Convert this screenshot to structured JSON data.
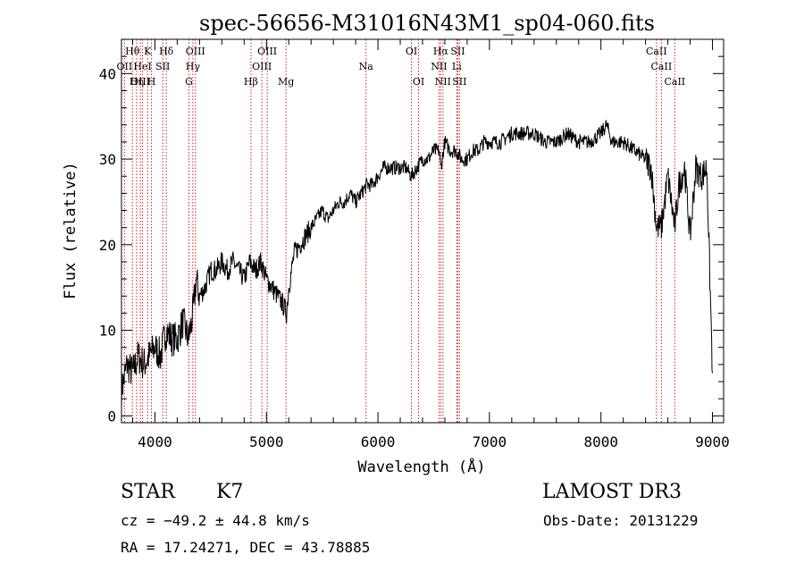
{
  "chart_data": {
    "type": "line",
    "title": "spec-56656-M31016N43M1_sp04-060.fits",
    "xlabel": "Wavelength (Å)",
    "ylabel": "Flux (relative)",
    "xlim": [
      3700,
      9100
    ],
    "ylim": [
      -0.8,
      44
    ],
    "xticks": [
      4000,
      5000,
      6000,
      7000,
      8000,
      9000
    ],
    "yticks": [
      0,
      10,
      20,
      30,
      40
    ],
    "series": [
      {
        "name": "spectrum",
        "x": [
          3700,
          3750,
          3800,
          3850,
          3900,
          3950,
          4000,
          4050,
          4100,
          4150,
          4200,
          4250,
          4300,
          4330,
          4350,
          4370,
          4400,
          4450,
          4500,
          4550,
          4600,
          4650,
          4700,
          4750,
          4800,
          4850,
          4900,
          4950,
          5000,
          5050,
          5100,
          5150,
          5180,
          5200,
          5250,
          5300,
          5350,
          5400,
          5450,
          5500,
          5550,
          5600,
          5650,
          5700,
          5750,
          5800,
          5850,
          5900,
          5950,
          6000,
          6050,
          6100,
          6150,
          6200,
          6250,
          6300,
          6350,
          6400,
          6450,
          6500,
          6550,
          6563,
          6600,
          6650,
          6700,
          6750,
          6800,
          6850,
          6900,
          6950,
          7000,
          7100,
          7200,
          7300,
          7400,
          7500,
          7600,
          7700,
          7800,
          7900,
          8000,
          8050,
          8100,
          8200,
          8300,
          8400,
          8450,
          8498,
          8542,
          8600,
          8662,
          8700,
          8750,
          8800,
          8850,
          8900,
          8950,
          9000
        ],
        "values": [
          3,
          6,
          5,
          7,
          6,
          7,
          8,
          7,
          10,
          9,
          9,
          11,
          9,
          11,
          13,
          16,
          14,
          15,
          17,
          17,
          18,
          17,
          18,
          17,
          16,
          18,
          17,
          18,
          16,
          15,
          14,
          13,
          12,
          15,
          19,
          20,
          21,
          22,
          23,
          24,
          23,
          24,
          25,
          25,
          26,
          25,
          26,
          27,
          27,
          28,
          29,
          29,
          29,
          29,
          29,
          28,
          29,
          30,
          30,
          31,
          31,
          29,
          32,
          31,
          31,
          30,
          30,
          31,
          31,
          32,
          32,
          32,
          33,
          33,
          33,
          32,
          32,
          33,
          32,
          32,
          33,
          34,
          32,
          32,
          31,
          30,
          29,
          22,
          22,
          28,
          22,
          27,
          29,
          21,
          29,
          28,
          29,
          5
        ]
      }
    ],
    "lines": [
      {
        "name": "Hθ",
        "x": 3798,
        "row": 1
      },
      {
        "name": "OII",
        "x": 3727,
        "row": 2
      },
      {
        "name": "OIII",
        "x": 3869,
        "row": 3
      },
      {
        "name": "Hη",
        "x": 3835,
        "row": 3
      },
      {
        "name": "K",
        "x": 3934,
        "row": 1
      },
      {
        "name": "HeI",
        "x": 3889,
        "row": 2
      },
      {
        "name": "H",
        "x": 3969,
        "row": 3
      },
      {
        "name": "Hδ",
        "x": 4102,
        "row": 1
      },
      {
        "name": "SII",
        "x": 4070,
        "row": 2
      },
      {
        "name": "OIII",
        "x": 4363,
        "row": 1
      },
      {
        "name": "Hγ",
        "x": 4340,
        "row": 2
      },
      {
        "name": "G",
        "x": 4305,
        "row": 3
      },
      {
        "name": "OIII",
        "x": 5007,
        "row": 1
      },
      {
        "name": "OIII",
        "x": 4959,
        "row": 2
      },
      {
        "name": "Hβ",
        "x": 4861,
        "row": 3
      },
      {
        "name": "Mg",
        "x": 5175,
        "row": 3
      },
      {
        "name": "Na",
        "x": 5893,
        "row": 2
      },
      {
        "name": "OI",
        "x": 6300,
        "row": 1
      },
      {
        "name": "OI",
        "x": 6364,
        "row": 3
      },
      {
        "name": "Hα",
        "x": 6563,
        "row": 1
      },
      {
        "name": "NII",
        "x": 6548,
        "row": 2
      },
      {
        "name": "NII",
        "x": 6583,
        "row": 3
      },
      {
        "name": "SII",
        "x": 6716,
        "row": 1
      },
      {
        "name": "Li",
        "x": 6707,
        "row": 2
      },
      {
        "name": "SII",
        "x": 6731,
        "row": 3
      },
      {
        "name": "CaII",
        "x": 8498,
        "row": 1
      },
      {
        "name": "CaII",
        "x": 8542,
        "row": 2
      },
      {
        "name": "CaII",
        "x": 8662,
        "row": 3
      }
    ]
  },
  "info": {
    "object_class": "STAR",
    "subclass": "K7",
    "survey": "LAMOST DR3",
    "cz": "cz = −49.2 ± 44.8 km/s",
    "obs_date": "Obs-Date: 20131229",
    "coords": "RA =  17.24271, DEC =  43.78885"
  },
  "colors": {
    "line_marker": "#cc2222",
    "spectrum": "#000000",
    "axis": "#000000"
  }
}
